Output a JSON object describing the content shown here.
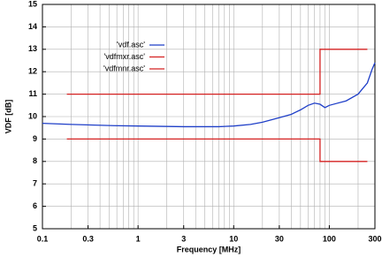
{
  "chart_data": {
    "type": "line",
    "xlabel": "Frequency [MHz]",
    "ylabel": "VDF [dB]",
    "xscale": "log",
    "xlim": [
      0.1,
      300
    ],
    "ylim": [
      5,
      15
    ],
    "xticks": [
      0.1,
      0.3,
      1,
      3,
      10,
      30,
      100,
      300
    ],
    "xgrid": [
      0.2,
      0.3,
      0.4,
      0.5,
      0.6,
      0.7,
      0.8,
      0.9,
      1,
      2,
      3,
      4,
      5,
      6,
      7,
      8,
      9,
      10,
      20,
      30,
      40,
      50,
      60,
      70,
      80,
      90,
      100,
      200
    ],
    "yticks": [
      5,
      6,
      7,
      8,
      9,
      10,
      11,
      12,
      13,
      14,
      15
    ],
    "grid": true,
    "legend": "upper left",
    "series": [
      {
        "name": "'vdf.asc'",
        "color": "#1f3fc8",
        "x": [
          0.1,
          0.2,
          0.5,
          1,
          3,
          7,
          10,
          15,
          20,
          30,
          40,
          50,
          60,
          70,
          80,
          90,
          100,
          150,
          200,
          250,
          280,
          300
        ],
        "values": [
          9.7,
          9.65,
          9.6,
          9.58,
          9.55,
          9.55,
          9.58,
          9.65,
          9.75,
          9.95,
          10.1,
          10.3,
          10.5,
          10.6,
          10.55,
          10.4,
          10.5,
          10.7,
          11.0,
          11.5,
          12.1,
          12.4
        ]
      },
      {
        "name": "'vdfmxr.asc'",
        "color": "#d42020",
        "x": [
          0.18,
          80,
          80,
          250
        ],
        "values": [
          11,
          11,
          13,
          13
        ]
      },
      {
        "name": "'vdfmnr.asc'",
        "color": "#d42020",
        "x": [
          0.18,
          80,
          80,
          250
        ],
        "values": [
          9,
          9,
          8,
          8
        ]
      }
    ]
  }
}
